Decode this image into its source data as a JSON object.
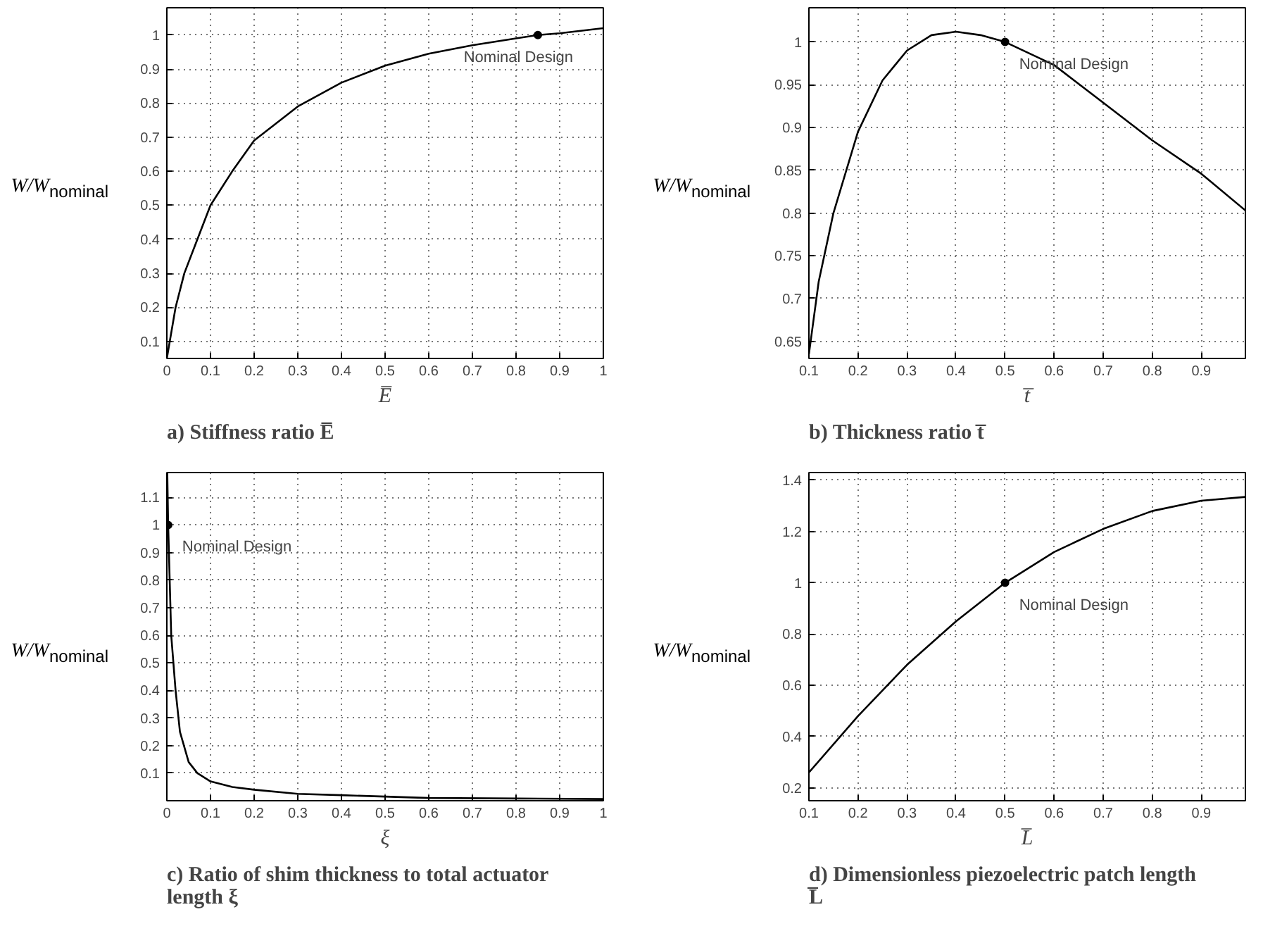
{
  "chart_data": [
    {
      "type": "line",
      "title": "a) Stiffness ratio E̅",
      "xlabel": "E̅",
      "ylabel": "W/W$_{nominal}$",
      "xlim": [
        0,
        1
      ],
      "ylim": [
        0.05,
        1.08
      ],
      "xticks": [
        0,
        0.1,
        0.2,
        0.3,
        0.4,
        0.5,
        0.6,
        0.7,
        0.8,
        0.9,
        1
      ],
      "yticks": [
        0.1,
        0.2,
        0.3,
        0.4,
        0.5,
        0.6,
        0.7,
        0.8,
        0.9,
        1
      ],
      "grid": true,
      "line_style": "solid",
      "annotations": [
        {
          "text": "Nominal Design",
          "x": 0.85,
          "y": 1.0
        }
      ],
      "series": [
        {
          "color": "#000000",
          "x": [
            0,
            0.02,
            0.04,
            0.07,
            0.1,
            0.15,
            0.2,
            0.3,
            0.4,
            0.5,
            0.6,
            0.7,
            0.8,
            0.85,
            0.9,
            1.0
          ],
          "values": [
            0.05,
            0.2,
            0.3,
            0.4,
            0.5,
            0.6,
            0.69,
            0.79,
            0.86,
            0.91,
            0.945,
            0.97,
            0.99,
            1.0,
            1.005,
            1.02
          ]
        },
        {
          "type": "scatter",
          "color": "#000000",
          "marker": "circle",
          "x": [
            0.85
          ],
          "values": [
            1.0
          ]
        }
      ]
    },
    {
      "type": "line",
      "title": "b) Thickness ratio t̅",
      "xlabel": "t̅",
      "ylabel": "W/W$_{nominal}$",
      "xlim": [
        0.1,
        0.99
      ],
      "ylim": [
        0.63,
        1.04
      ],
      "xticks": [
        0.1,
        0.2,
        0.3,
        0.4,
        0.5,
        0.6,
        0.7,
        0.8,
        0.9
      ],
      "yticks": [
        0.65,
        0.7,
        0.75,
        0.8,
        0.85,
        0.9,
        0.95,
        1
      ],
      "grid": true,
      "line_style": "solid",
      "annotations": [
        {
          "text": "Nominal Design",
          "x": 0.5,
          "y": 1.0
        }
      ],
      "series": [
        {
          "color": "#000000",
          "x": [
            0.1,
            0.12,
            0.15,
            0.2,
            0.25,
            0.3,
            0.35,
            0.4,
            0.45,
            0.5,
            0.6,
            0.7,
            0.8,
            0.9,
            0.99
          ],
          "values": [
            0.635,
            0.72,
            0.8,
            0.895,
            0.955,
            0.99,
            1.008,
            1.012,
            1.008,
            1.0,
            0.973,
            0.929,
            0.885,
            0.846,
            0.803
          ]
        },
        {
          "type": "scatter",
          "color": "#000000",
          "marker": "circle",
          "x": [
            0.5
          ],
          "values": [
            1.0
          ]
        }
      ]
    },
    {
      "type": "line",
      "title": "c) Ratio of shim thickness to total actuator length ξ",
      "xlabel": "ξ",
      "ylabel": "W/W$_{nominal}$",
      "xlim": [
        0,
        1
      ],
      "ylim": [
        0,
        1.19
      ],
      "xticks": [
        0,
        0.1,
        0.2,
        0.3,
        0.4,
        0.5,
        0.6,
        0.7,
        0.8,
        0.9,
        1
      ],
      "yticks": [
        0.1,
        0.2,
        0.3,
        0.4,
        0.5,
        0.6,
        0.7,
        0.8,
        0.9,
        1,
        1.1
      ],
      "grid": true,
      "line_style": "solid",
      "annotations": [
        {
          "text": "Nominal Design",
          "x": 0.003,
          "y": 1.0
        }
      ],
      "series": [
        {
          "color": "#000000",
          "x": [
            0.001,
            0.003,
            0.01,
            0.02,
            0.03,
            0.05,
            0.07,
            0.1,
            0.15,
            0.2,
            0.3,
            0.4,
            0.5,
            0.6,
            0.8,
            1.0
          ],
          "values": [
            1.19,
            1.0,
            0.6,
            0.4,
            0.25,
            0.14,
            0.1,
            0.07,
            0.05,
            0.04,
            0.025,
            0.02,
            0.015,
            0.01,
            0.008,
            0.006
          ]
        },
        {
          "type": "scatter",
          "color": "#000000",
          "marker": "circle",
          "x": [
            0.003
          ],
          "values": [
            1.0
          ]
        }
      ]
    },
    {
      "type": "line",
      "title": "d) Dimensionless piezoelectric patch length L̅",
      "xlabel": "L̅",
      "ylabel": "W/W$_{nominal}$",
      "xlim": [
        0.1,
        0.99
      ],
      "ylim": [
        0.15,
        1.43
      ],
      "xticks": [
        0.1,
        0.2,
        0.3,
        0.4,
        0.5,
        0.6,
        0.7,
        0.8,
        0.9
      ],
      "yticks": [
        0.2,
        0.4,
        0.6,
        0.8,
        1,
        1.2,
        1.4
      ],
      "grid": true,
      "line_style": "solid",
      "annotations": [
        {
          "text": "Nominal Design",
          "x": 0.5,
          "y": 1.0
        }
      ],
      "series": [
        {
          "color": "#000000",
          "x": [
            0.1,
            0.2,
            0.3,
            0.4,
            0.5,
            0.6,
            0.7,
            0.8,
            0.9,
            0.99
          ],
          "values": [
            0.26,
            0.48,
            0.68,
            0.85,
            1.0,
            1.12,
            1.21,
            1.28,
            1.32,
            1.335
          ]
        },
        {
          "type": "scatter",
          "color": "#000000",
          "marker": "circle",
          "x": [
            0.5
          ],
          "values": [
            1.0
          ]
        }
      ]
    }
  ]
}
